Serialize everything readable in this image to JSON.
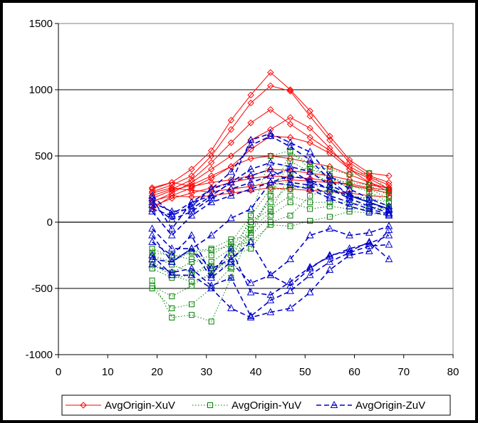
{
  "chart_data": {
    "type": "line",
    "title": "",
    "xlabel": "",
    "ylabel": "",
    "xlim": [
      0,
      80
    ],
    "ylim": [
      -1000,
      1500
    ],
    "x_ticks": [
      "0",
      "10",
      "20",
      "30",
      "40",
      "50",
      "60",
      "70",
      "80"
    ],
    "y_ticks": [
      "-1000",
      "-500",
      "0",
      "500",
      "1000",
      "1500"
    ],
    "grid": "horizontal",
    "legend_position": "bottom",
    "x": [
      19,
      23,
      27,
      31,
      35,
      39,
      43,
      47,
      51,
      55,
      59,
      63,
      67
    ],
    "series": [
      {
        "name": "AvgOrigin-XuV",
        "color": "#ff0000",
        "dash": "solid",
        "marker": "diamond",
        "lines": [
          [
            250,
            300,
            400,
            540,
            770,
            960,
            1130,
            1000,
            840,
            650,
            470,
            370,
            350
          ],
          [
            230,
            280,
            350,
            500,
            700,
            900,
            1030,
            990,
            800,
            620,
            450,
            350,
            300
          ],
          [
            200,
            250,
            320,
            450,
            600,
            750,
            850,
            740,
            640,
            540,
            420,
            340,
            280
          ],
          [
            150,
            220,
            300,
            400,
            500,
            620,
            700,
            790,
            710,
            560,
            400,
            330,
            250
          ],
          [
            100,
            200,
            260,
            330,
            420,
            550,
            650,
            640,
            600,
            520,
            400,
            300,
            230
          ],
          [
            180,
            240,
            280,
            350,
            420,
            480,
            500,
            480,
            450,
            420,
            360,
            300,
            250
          ],
          [
            260,
            300,
            270,
            300,
            320,
            350,
            400,
            390,
            370,
            350,
            320,
            280,
            260
          ],
          [
            120,
            180,
            220,
            260,
            300,
            330,
            350,
            340,
            330,
            310,
            280,
            250,
            220
          ],
          [
            220,
            260,
            240,
            230,
            250,
            270,
            300,
            320,
            310,
            300,
            290,
            260,
            240
          ],
          [
            160,
            200,
            190,
            200,
            220,
            240,
            260,
            250,
            240,
            230,
            220,
            200,
            190
          ]
        ]
      },
      {
        "name": "AvgOrigin-YuV",
        "color": "#008000",
        "dash": "dotted",
        "marker": "square",
        "lines": [
          [
            -440,
            -720,
            -700,
            -750,
            -420,
            -60,
            80,
            360,
            420,
            400,
            360,
            370,
            240
          ],
          [
            -500,
            -650,
            -620,
            -500,
            -340,
            -50,
            200,
            530,
            440,
            320,
            300,
            280,
            200
          ],
          [
            -480,
            -560,
            -480,
            -380,
            -230,
            -80,
            200,
            460,
            380,
            300,
            270,
            250,
            180
          ],
          [
            -350,
            -420,
            -400,
            -300,
            -200,
            0,
            150,
            280,
            250,
            230,
            200,
            180,
            150
          ],
          [
            -300,
            -380,
            -300,
            -250,
            -150,
            50,
            500,
            540,
            400,
            350,
            280,
            230,
            150
          ],
          [
            -250,
            -300,
            -220,
            -200,
            -130,
            -100,
            50,
            150,
            100,
            120,
            100,
            100,
            100
          ],
          [
            -320,
            -400,
            -450,
            -400,
            -250,
            -200,
            0,
            50,
            200,
            250,
            200,
            150,
            100
          ],
          [
            -230,
            -250,
            -280,
            -330,
            -350,
            0,
            100,
            200,
            150,
            150,
            150,
            120,
            90
          ],
          [
            -200,
            -260,
            -230,
            -210,
            -180,
            -150,
            -20,
            -30,
            10,
            40,
            80,
            70,
            50
          ],
          [
            -260,
            -320,
            -380,
            -350,
            -300,
            50,
            250,
            250,
            280,
            260,
            200,
            170,
            120
          ]
        ]
      },
      {
        "name": "AvgOrigin-ZuV",
        "color": "#0000cc",
        "dash": "dashed",
        "marker": "triangle",
        "lines": [
          [
            -250,
            -400,
            -400,
            -500,
            -650,
            -720,
            -680,
            -650,
            -530,
            -360,
            -250,
            -220,
            -60
          ],
          [
            -320,
            -380,
            -350,
            -480,
            -420,
            -710,
            -590,
            -520,
            -400,
            -300,
            -230,
            -180,
            -170
          ],
          [
            -100,
            -300,
            -200,
            -420,
            -300,
            -460,
            -400,
            -480,
            -350,
            -250,
            -220,
            -150,
            -280
          ],
          [
            -150,
            -250,
            -100,
            -400,
            -200,
            -530,
            -550,
            -450,
            -340,
            -260,
            -200,
            -160,
            -100
          ],
          [
            -50,
            -200,
            -200,
            -350,
            -280,
            -150,
            -400,
            -280,
            -100,
            -50,
            -100,
            -80,
            -30
          ],
          [
            180,
            -50,
            150,
            200,
            300,
            620,
            670,
            600,
            530,
            350,
            250,
            180,
            120
          ],
          [
            100,
            50,
            120,
            250,
            380,
            580,
            650,
            570,
            470,
            320,
            200,
            150,
            100
          ],
          [
            150,
            80,
            100,
            200,
            300,
            400,
            450,
            420,
            380,
            280,
            210,
            150,
            90
          ],
          [
            130,
            20,
            80,
            180,
            250,
            300,
            350,
            400,
            300,
            250,
            180,
            120,
            70
          ],
          [
            200,
            60,
            150,
            250,
            300,
            350,
            400,
            300,
            280,
            200,
            150,
            100,
            60
          ],
          [
            80,
            -100,
            50,
            150,
            200,
            250,
            300,
            350,
            320,
            250,
            200,
            150,
            100
          ],
          [
            -280,
            -300,
            -200,
            -100,
            30,
            100,
            300,
            280,
            250,
            180,
            120,
            80,
            50
          ]
        ]
      }
    ]
  }
}
